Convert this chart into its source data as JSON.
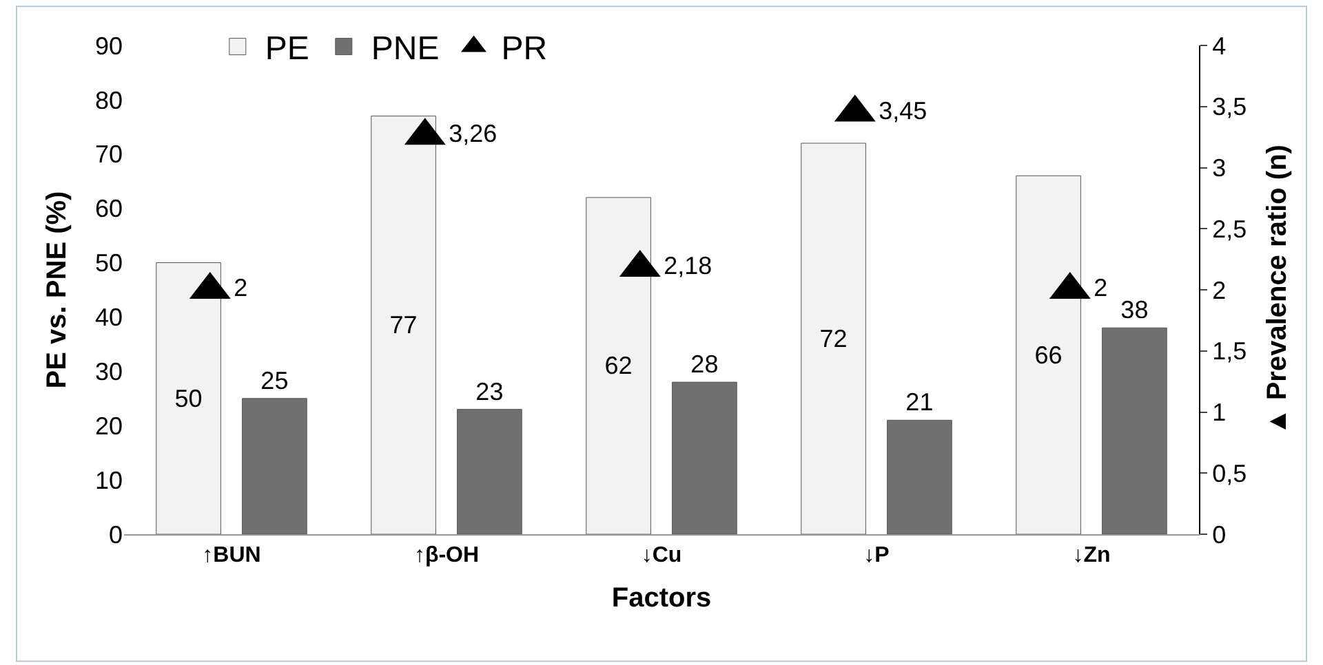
{
  "chart_data": {
    "type": "bar",
    "xlabel": "Factors",
    "ylabel": "PE vs. PNE (%)",
    "y2label": "▲ Prevalence ratio (n)",
    "categories": [
      "↑BUN",
      "↑β-OH",
      "↓Cu",
      "↓P",
      "↓Zn"
    ],
    "series": [
      {
        "name": "PE",
        "color": "#f2f2f2",
        "values": [
          50,
          77,
          62,
          72,
          66
        ],
        "value_labels": [
          "50",
          "77",
          "62",
          "72",
          "66"
        ]
      },
      {
        "name": "PNE",
        "color": "#707070",
        "values": [
          25,
          23,
          28,
          21,
          38
        ],
        "value_labels": [
          "25",
          "23",
          "28",
          "21",
          "38"
        ]
      },
      {
        "name": "PR",
        "type": "scatter",
        "axis": "y2",
        "color": "#000000",
        "marker": "triangle",
        "values": [
          2,
          3.26,
          2.18,
          3.45,
          2
        ],
        "value_labels": [
          "2",
          "3,26",
          "2,18",
          "3,45",
          "2"
        ]
      }
    ],
    "ylim": [
      0,
      90
    ],
    "yticks": [
      0,
      10,
      20,
      30,
      40,
      50,
      60,
      70,
      80,
      90
    ],
    "y2lim": [
      0,
      4
    ],
    "y2ticks": [
      0,
      {
        "value": 0.5,
        "label": "0,5"
      },
      1,
      {
        "value": 1.5,
        "label": "1,5"
      },
      2,
      {
        "value": 2.5,
        "label": "2,5"
      },
      3,
      {
        "value": 3.5,
        "label": "3,5"
      },
      4
    ],
    "legend": "top"
  }
}
